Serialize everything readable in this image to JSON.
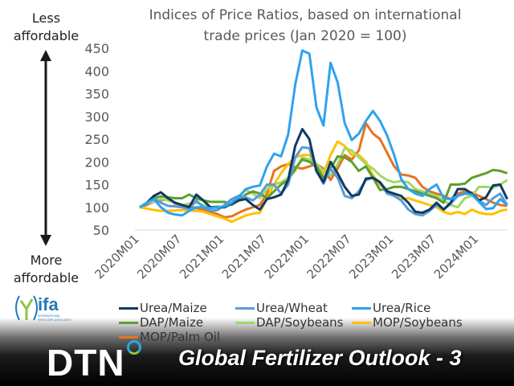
{
  "chart_data": {
    "type": "line",
    "title": "Indices of Price Ratios, based on international trade prices (Jan 2020 = 100)",
    "title_lines": [
      "Indices of Price Ratios, based on international",
      "trade prices (Jan 2020 = 100)"
    ],
    "x_start": "2020M01",
    "x_frequency": "monthly",
    "x_ticks": [
      "2020M01",
      "2020M07",
      "2021M01",
      "2021M07",
      "2022M01",
      "2022M07",
      "2023M01",
      "2023M07",
      "2024M01"
    ],
    "y_ticks": [
      50,
      100,
      150,
      200,
      250,
      300,
      350,
      400,
      450
    ],
    "ylim": [
      50,
      450
    ],
    "grid": false,
    "legend_placement": "bottom",
    "series": [
      {
        "name": "Urea/Maize",
        "color": "#0f3a63",
        "values": [
          100,
          110,
          125,
          133,
          120,
          110,
          105,
          100,
          128,
          115,
          100,
          100,
          100,
          108,
          115,
          118,
          105,
          95,
          118,
          122,
          128,
          160,
          235,
          272,
          250,
          180,
          155,
          200,
          175,
          145,
          125,
          128,
          163,
          165,
          155,
          135,
          130,
          125,
          110,
          90,
          88,
          95,
          110,
          95,
          110,
          140,
          140,
          130,
          115,
          122,
          148,
          150,
          118
        ]
      },
      {
        "name": "Urea/Wheat",
        "color": "#5b9bd5",
        "values": [
          100,
          108,
          120,
          110,
          103,
          102,
          100,
          96,
          115,
          100,
          92,
          94,
          105,
          118,
          125,
          122,
          115,
          128,
          150,
          150,
          130,
          150,
          210,
          232,
          230,
          180,
          152,
          185,
          165,
          125,
          120,
          135,
          160,
          165,
          155,
          130,
          125,
          115,
          95,
          85,
          82,
          92,
          105,
          95,
          108,
          125,
          130,
          130,
          115,
          105,
          120,
          130,
          105
        ]
      },
      {
        "name": "Urea/Rice",
        "color": "#2ea3ef",
        "values": [
          100,
          110,
          118,
          100,
          88,
          84,
          82,
          92,
          100,
          100,
          98,
          100,
          102,
          110,
          122,
          140,
          145,
          148,
          190,
          218,
          212,
          260,
          370,
          445,
          438,
          320,
          280,
          418,
          375,
          285,
          248,
          262,
          290,
          312,
          290,
          258,
          215,
          162,
          140,
          130,
          125,
          140,
          150,
          120,
          118,
          125,
          130,
          128,
          112,
          96,
          98,
          118,
          105
        ]
      },
      {
        "name": "DAP/Maize",
        "color": "#5e9e2e",
        "values": [
          100,
          110,
          120,
          124,
          122,
          120,
          120,
          128,
          120,
          115,
          112,
          112,
          112,
          105,
          115,
          128,
          135,
          130,
          120,
          135,
          150,
          160,
          185,
          205,
          200,
          190,
          165,
          185,
          212,
          210,
          200,
          180,
          190,
          165,
          138,
          140,
          145,
          145,
          140,
          135,
          130,
          125,
          120,
          110,
          150,
          150,
          152,
          165,
          170,
          175,
          182,
          180,
          175
        ]
      },
      {
        "name": "DAP/Soybeans",
        "color": "#9fd86b",
        "values": [
          100,
          108,
          112,
          118,
          115,
          110,
          105,
          108,
          110,
          105,
          100,
          102,
          100,
          110,
          125,
          138,
          130,
          120,
          140,
          150,
          155,
          165,
          180,
          210,
          205,
          195,
          180,
          170,
          195,
          230,
          225,
          210,
          195,
          185,
          170,
          160,
          155,
          158,
          155,
          140,
          135,
          130,
          125,
          115,
          105,
          100,
          120,
          125,
          145,
          145,
          143,
          150,
          160
        ]
      },
      {
        "name": "MOP/Soybeans",
        "color": "#ffc000",
        "values": [
          100,
          97,
          94,
          92,
          92,
          93,
          94,
          93,
          92,
          90,
          85,
          80,
          75,
          68,
          75,
          82,
          86,
          88,
          120,
          150,
          175,
          195,
          210,
          215,
          215,
          195,
          175,
          215,
          245,
          235,
          215,
          215,
          200,
          170,
          150,
          135,
          125,
          118,
          120,
          115,
          110,
          105,
          100,
          90,
          85,
          90,
          85,
          95,
          88,
          85,
          85,
          92,
          95
        ]
      },
      {
        "name": "MOP/Palm Oil",
        "color": "#e8731e",
        "values": [
          100,
          105,
          112,
          115,
          118,
          108,
          105,
          102,
          98,
          95,
          90,
          85,
          78,
          80,
          88,
          95,
          100,
          105,
          130,
          180,
          190,
          195,
          188,
          185,
          190,
          195,
          185,
          160,
          185,
          215,
          205,
          225,
          285,
          262,
          250,
          220,
          190,
          172,
          170,
          165,
          145,
          135,
          130,
          125,
          118,
          130,
          135,
          132,
          125,
          118,
          110,
          105,
          103
        ]
      }
    ]
  },
  "side_labels": {
    "top_line1": "Less",
    "top_line2": "affordable",
    "bottom_line1": "More",
    "bottom_line2": "affordable"
  },
  "logos": {
    "ifa": "ifa",
    "ifa_sub": "INTERNATIONAL FERTILIZER ASSOCIATION",
    "dtn": "DTN"
  },
  "footer": {
    "title": "Global Fertilizer Outlook - 3"
  }
}
